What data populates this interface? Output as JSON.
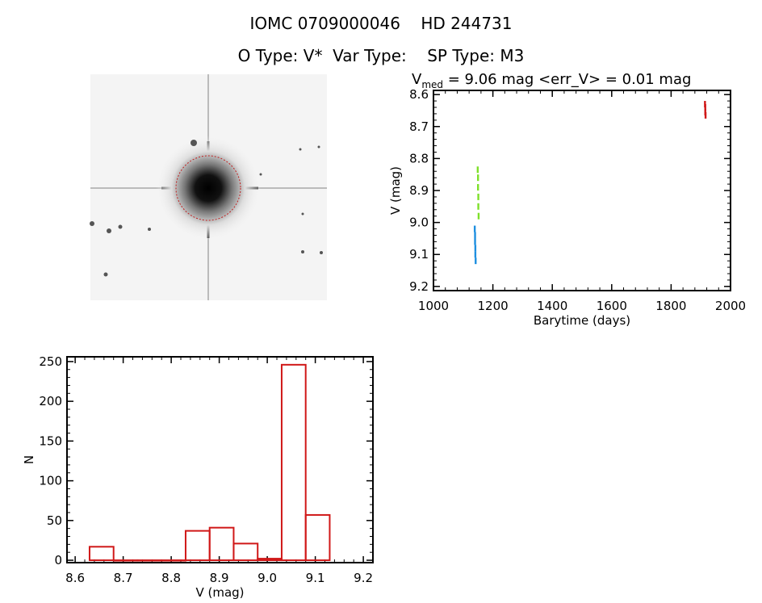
{
  "header": {
    "line1": "IOMC 0709000046    HD 244731",
    "line2": "O Type: V*  Var Type:    SP Type: M3"
  },
  "chart_data": [
    {
      "type": "image",
      "description_name": "sky-thumbnail"
    },
    {
      "type": "scatter",
      "title_prefix": "V",
      "title_sub": "med",
      "title_rest": " = 9.06 mag <err_V> = 0.01 mag",
      "xlabel": "Barytime (days)",
      "ylabel": "V (mag)",
      "xlim": [
        1000,
        2000
      ],
      "ylim": [
        9.213,
        8.587
      ],
      "y_inverted": true,
      "xticks": [
        1000,
        1200,
        1400,
        1600,
        1800,
        2000
      ],
      "xtick_labels": [
        "1000",
        "1200",
        "1400",
        "1600",
        "1800",
        "2000"
      ],
      "yticks": [
        8.6,
        8.7,
        8.8,
        8.9,
        9.0,
        9.1,
        9.2
      ],
      "ytick_labels": [
        "8.6",
        "8.7",
        "8.8",
        "8.9",
        "9.0",
        "9.1",
        "9.2"
      ],
      "series": [
        {
          "color": "#1e8fe0",
          "x": [
            1139,
            1140,
            1140,
            1141,
            1141,
            1142
          ],
          "y": [
            9.02,
            9.04,
            9.06,
            9.08,
            9.1,
            9.12
          ]
        },
        {
          "color": "#7ee02a",
          "x": [
            1149,
            1150,
            1150,
            1151,
            1151,
            1152
          ],
          "y": [
            8.835,
            8.86,
            8.89,
            8.92,
            8.95,
            8.98
          ]
        },
        {
          "color": "#d01818",
          "x": [
            1914,
            1915,
            1915,
            1916
          ],
          "y": [
            8.63,
            8.64,
            8.655,
            8.665
          ]
        }
      ]
    },
    {
      "type": "bar",
      "style": "histogram-outline",
      "color": "#d01818",
      "xlabel": "V (mag)",
      "ylabel": "N",
      "xlim": [
        8.583,
        9.22
      ],
      "ylim": [
        -3,
        256
      ],
      "bin_edges": [
        8.63,
        8.68,
        8.73,
        8.78,
        8.83,
        8.88,
        8.93,
        8.98,
        9.03,
        9.08,
        9.13
      ],
      "bin_starts": [
        8.63,
        8.68,
        8.73,
        8.78,
        8.83,
        8.88,
        8.93,
        8.98,
        9.03,
        9.08
      ],
      "values": [
        17,
        0,
        0,
        0,
        37,
        41,
        21,
        2,
        246,
        57
      ],
      "xticks": [
        8.6,
        8.7,
        8.8,
        8.9,
        9.0,
        9.1,
        9.2
      ],
      "xtick_labels": [
        "8.6",
        "8.7",
        "8.8",
        "8.9",
        "9.0",
        "9.1",
        "9.2"
      ],
      "yticks": [
        0,
        50,
        100,
        150,
        200,
        250
      ],
      "ytick_labels": [
        "0",
        "50",
        "100",
        "150",
        "200",
        "250"
      ]
    }
  ]
}
